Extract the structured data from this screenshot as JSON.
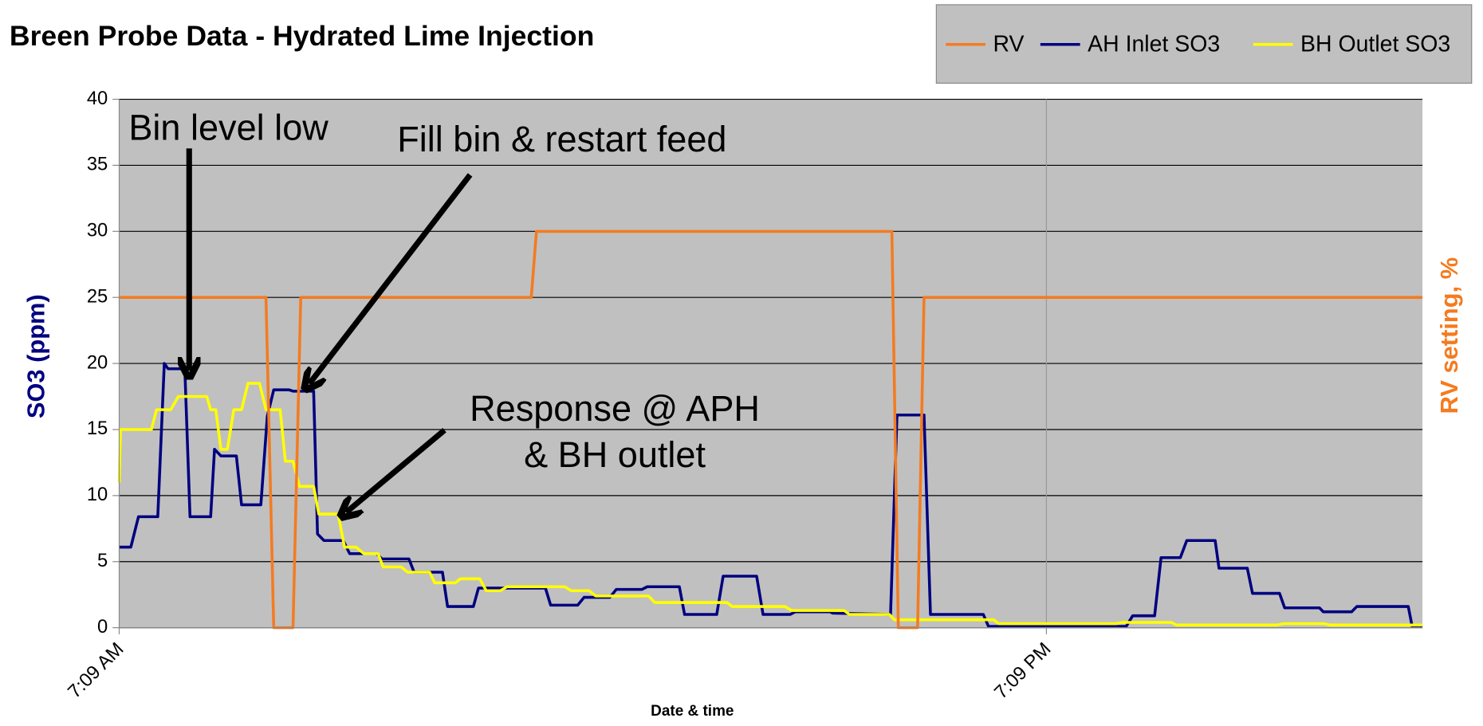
{
  "chart_data": {
    "type": "line",
    "title": "Breen Probe Data - Hydrated Lime Injection",
    "x_label": "Date & time",
    "y_label": "SO3 (ppm)",
    "y2_label": "RV setting, %",
    "xlim": [
      429,
      1441
    ],
    "xticks": [
      {
        "value": 429,
        "label": "7:09 AM"
      },
      {
        "value": 1149,
        "label": "7:09 PM"
      }
    ],
    "ylim": [
      0,
      40
    ],
    "yticks": [
      0,
      5,
      10,
      15,
      20,
      25,
      30,
      35,
      40
    ],
    "grid": true,
    "legend": "upper right",
    "series": [
      {
        "name": "RV",
        "color": "#f47b20",
        "x": [
          429,
          543,
          549,
          564,
          570,
          749,
          753,
          1029,
          1034,
          1049,
          1054,
          1441
        ],
        "values": [
          25,
          25,
          0,
          0,
          25,
          25,
          30,
          30,
          0,
          0,
          25,
          25
        ]
      },
      {
        "name": "AH Inlet SO3",
        "color": "#000080",
        "x": [
          429,
          438,
          444,
          459,
          464,
          467,
          480,
          484,
          500,
          503,
          508,
          520,
          524,
          539,
          544,
          549,
          561,
          564,
          580,
          583,
          588,
          603,
          608,
          629,
          633,
          654,
          658,
          680,
          684,
          704,
          708,
          760,
          764,
          785,
          790,
          810,
          815,
          835,
          839,
          864,
          868,
          893,
          898,
          924,
          929,
          950,
          954,
          981,
          983,
          1028,
          1033,
          1054,
          1059,
          1100,
          1104,
          1211,
          1216,
          1233,
          1238,
          1253,
          1258,
          1280,
          1283,
          1305,
          1309,
          1330,
          1334,
          1361,
          1364,
          1386,
          1390,
          1430,
          1433,
          1441
        ],
        "values": [
          6.1,
          6.1,
          8.4,
          8.4,
          20,
          19.6,
          19.6,
          8.4,
          8.4,
          13.5,
          13,
          13,
          9.3,
          9.3,
          16,
          18,
          18,
          17.9,
          17.9,
          7.1,
          6.6,
          6.6,
          5.6,
          5.6,
          5.2,
          5.2,
          4.2,
          4.2,
          1.6,
          1.6,
          3,
          3,
          1.7,
          1.7,
          2.3,
          2.3,
          2.9,
          2.9,
          3.1,
          3.1,
          1,
          1,
          3.9,
          3.9,
          1,
          1,
          1.2,
          1.2,
          1.1,
          1,
          16.1,
          16.1,
          1,
          1,
          0.1,
          0.1,
          0.9,
          0.9,
          5.3,
          5.3,
          6.6,
          6.6,
          4.5,
          4.5,
          2.6,
          2.6,
          1.5,
          1.5,
          1.2,
          1.2,
          1.6,
          1.6,
          0.1,
          0.1
        ]
      },
      {
        "name": "BH Outlet SO3",
        "color": "#ffff00",
        "x": [
          429,
          430,
          454,
          458,
          469,
          475,
          497,
          500,
          504,
          508,
          513,
          518,
          524,
          529,
          538,
          543,
          554,
          558,
          564,
          569,
          580,
          584,
          599,
          604,
          613,
          619,
          630,
          634,
          648,
          653,
          670,
          674,
          690,
          694,
          709,
          714,
          725,
          730,
          775,
          780,
          794,
          799,
          840,
          845,
          901,
          905,
          946,
          951,
          992,
          996,
          1027,
          1031,
          1108,
          1112,
          1203,
          1208,
          1246,
          1250,
          1328,
          1333,
          1365,
          1369,
          1441
        ],
        "values": [
          11,
          15,
          15,
          16.5,
          16.5,
          17.5,
          17.5,
          16.5,
          16.5,
          13.5,
          13.5,
          16.5,
          16.5,
          18.5,
          18.5,
          16.5,
          16.5,
          12.6,
          12.6,
          10.7,
          10.7,
          8.6,
          8.6,
          6.1,
          6.1,
          5.6,
          5.6,
          4.6,
          4.6,
          4.2,
          4.2,
          3.4,
          3.4,
          3.7,
          3.7,
          2.8,
          2.8,
          3.1,
          3.1,
          2.8,
          2.8,
          2.4,
          2.4,
          1.9,
          1.9,
          1.6,
          1.6,
          1.3,
          1.3,
          1,
          1,
          0.6,
          0.6,
          0.3,
          0.3,
          0.4,
          0.4,
          0.2,
          0.2,
          0.3,
          0.3,
          0.2,
          0.2
        ]
      }
    ],
    "annotations": [
      {
        "lines": [
          "Bin level low"
        ]
      },
      {
        "lines": [
          "Fill bin & restart feed"
        ]
      },
      {
        "lines": [
          "Response @ APH",
          "& BH outlet"
        ]
      }
    ]
  }
}
